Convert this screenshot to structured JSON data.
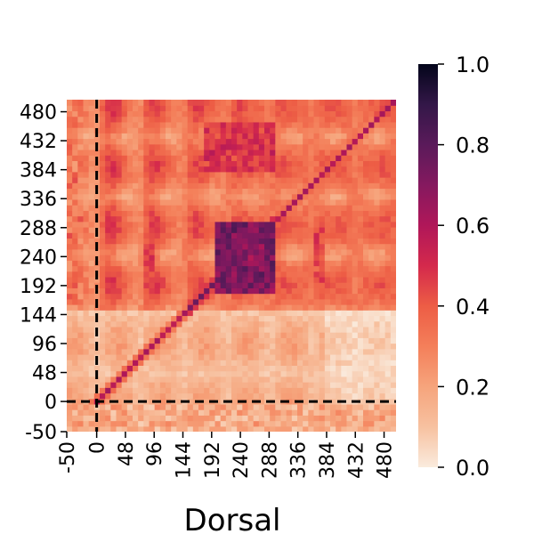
{
  "chart_data": {
    "type": "heatmap",
    "title": "",
    "xlabel": "Dorsal",
    "ylabel": "",
    "x_range": [
      -50,
      500
    ],
    "y_range": [
      -50,
      500
    ],
    "x_ticks": [
      "-50",
      "0",
      "48",
      "96",
      "144",
      "192",
      "240",
      "288",
      "336",
      "384",
      "432",
      "480"
    ],
    "y_ticks": [
      "480",
      "432",
      "384",
      "336",
      "288",
      "240",
      "192",
      "144",
      "96",
      "48",
      "0",
      "-50"
    ],
    "x_tick_values": [
      -50,
      0,
      48,
      96,
      144,
      192,
      240,
      288,
      336,
      384,
      432,
      480
    ],
    "y_tick_values": [
      480,
      432,
      384,
      336,
      288,
      240,
      192,
      144,
      96,
      48,
      0,
      -50
    ],
    "colorbar": {
      "min": 0.0,
      "max": 1.0,
      "ticks": [
        "0.0",
        "0.2",
        "0.4",
        "0.6",
        "0.8",
        "1.0"
      ],
      "tick_values": [
        0.0,
        0.2,
        0.4,
        0.6,
        0.8,
        1.0
      ],
      "colormap": "rocket_r"
    },
    "reference_lines": [
      {
        "axis": "x",
        "value": 0,
        "style": "dashed",
        "color": "#000000"
      },
      {
        "axis": "y",
        "value": 0,
        "style": "dashed",
        "color": "#000000"
      }
    ],
    "regions": [
      {
        "desc": "diagonal",
        "value": 0.75
      },
      {
        "x": [
          200,
          300
        ],
        "y": [
          180,
          300
        ],
        "value": 0.82
      },
      {
        "x": [
          180,
          300
        ],
        "y": [
          380,
          460
        ],
        "value": 0.55
      },
      {
        "x": [
          80,
          100
        ],
        "y": [
          190,
          290
        ],
        "value": 0.5
      },
      {
        "x": [
          360,
          380
        ],
        "y": [
          190,
          290
        ],
        "value": 0.5
      },
      {
        "x": [
          -50,
          0
        ],
        "y": [
          -50,
          500
        ],
        "value": 0.25
      },
      {
        "x": [
          -50,
          500
        ],
        "y": [
          -50,
          0
        ],
        "value": 0.1
      }
    ]
  }
}
